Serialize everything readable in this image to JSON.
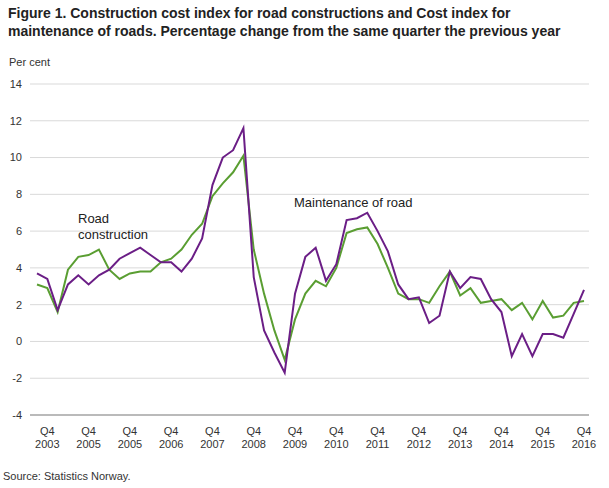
{
  "chart_data": {
    "type": "line",
    "title": "Figure 1. Construction cost index for road constructions and Cost index for maintenance of roads. Percentage change from the same quarter the previous year",
    "y_label": "Per cent",
    "source": "Source: Statistics Norway.",
    "categories": [
      null,
      "Q4 2003",
      null,
      null,
      null,
      "Q4 2005",
      null,
      null,
      null,
      "Q4 2005",
      null,
      null,
      null,
      "Q4 2006",
      null,
      null,
      null,
      "Q4 2007",
      null,
      null,
      null,
      "Q4 2008",
      null,
      null,
      null,
      "Q4 2009",
      null,
      null,
      null,
      "Q4 2010",
      null,
      null,
      null,
      "Q4 2011",
      null,
      null,
      null,
      "Q4 2012",
      null,
      null,
      null,
      "Q4 2013",
      null,
      null,
      null,
      "Q4 2014",
      null,
      null,
      null,
      "Q4 2015",
      null,
      null,
      null,
      "Q4 2016"
    ],
    "series": [
      {
        "name": "Road construction",
        "color": "#5a9e32",
        "values": [
          3.1,
          2.9,
          1.6,
          3.9,
          4.6,
          4.7,
          5.0,
          3.9,
          3.4,
          3.7,
          3.8,
          3.8,
          4.3,
          4.5,
          5.0,
          5.8,
          6.4,
          7.9,
          8.6,
          9.2,
          10.1,
          5.0,
          2.6,
          0.6,
          -1.0,
          1.2,
          2.6,
          3.3,
          3.0,
          4.0,
          5.9,
          6.1,
          6.2,
          5.3,
          4.0,
          2.6,
          2.3,
          2.3,
          2.1,
          3.0,
          3.8,
          2.5,
          2.9,
          2.1,
          2.2,
          2.3,
          1.7,
          2.1,
          1.2,
          2.2,
          1.3,
          1.4,
          2.1,
          2.2
        ]
      },
      {
        "name": "Maintenance of road",
        "color": "#6b1e86",
        "values": [
          3.7,
          3.4,
          1.7,
          3.1,
          3.6,
          3.1,
          3.6,
          3.9,
          4.5,
          4.8,
          5.1,
          4.7,
          4.3,
          4.3,
          3.8,
          4.5,
          5.6,
          8.5,
          10.0,
          10.4,
          11.6,
          3.5,
          0.6,
          -0.6,
          -1.7,
          2.6,
          4.6,
          5.1,
          3.3,
          4.2,
          6.6,
          6.7,
          7.0,
          6.0,
          4.9,
          3.1,
          2.3,
          2.4,
          1.0,
          1.4,
          3.8,
          2.9,
          3.5,
          3.4,
          2.3,
          1.6,
          -0.8,
          0.4,
          -0.8,
          0.4,
          0.4,
          0.2,
          1.5,
          2.8
        ]
      }
    ],
    "ylim": [
      -4,
      14
    ],
    "yticks": [
      -4,
      -2,
      0,
      2,
      4,
      6,
      8,
      10,
      12,
      14
    ],
    "grid": true
  }
}
